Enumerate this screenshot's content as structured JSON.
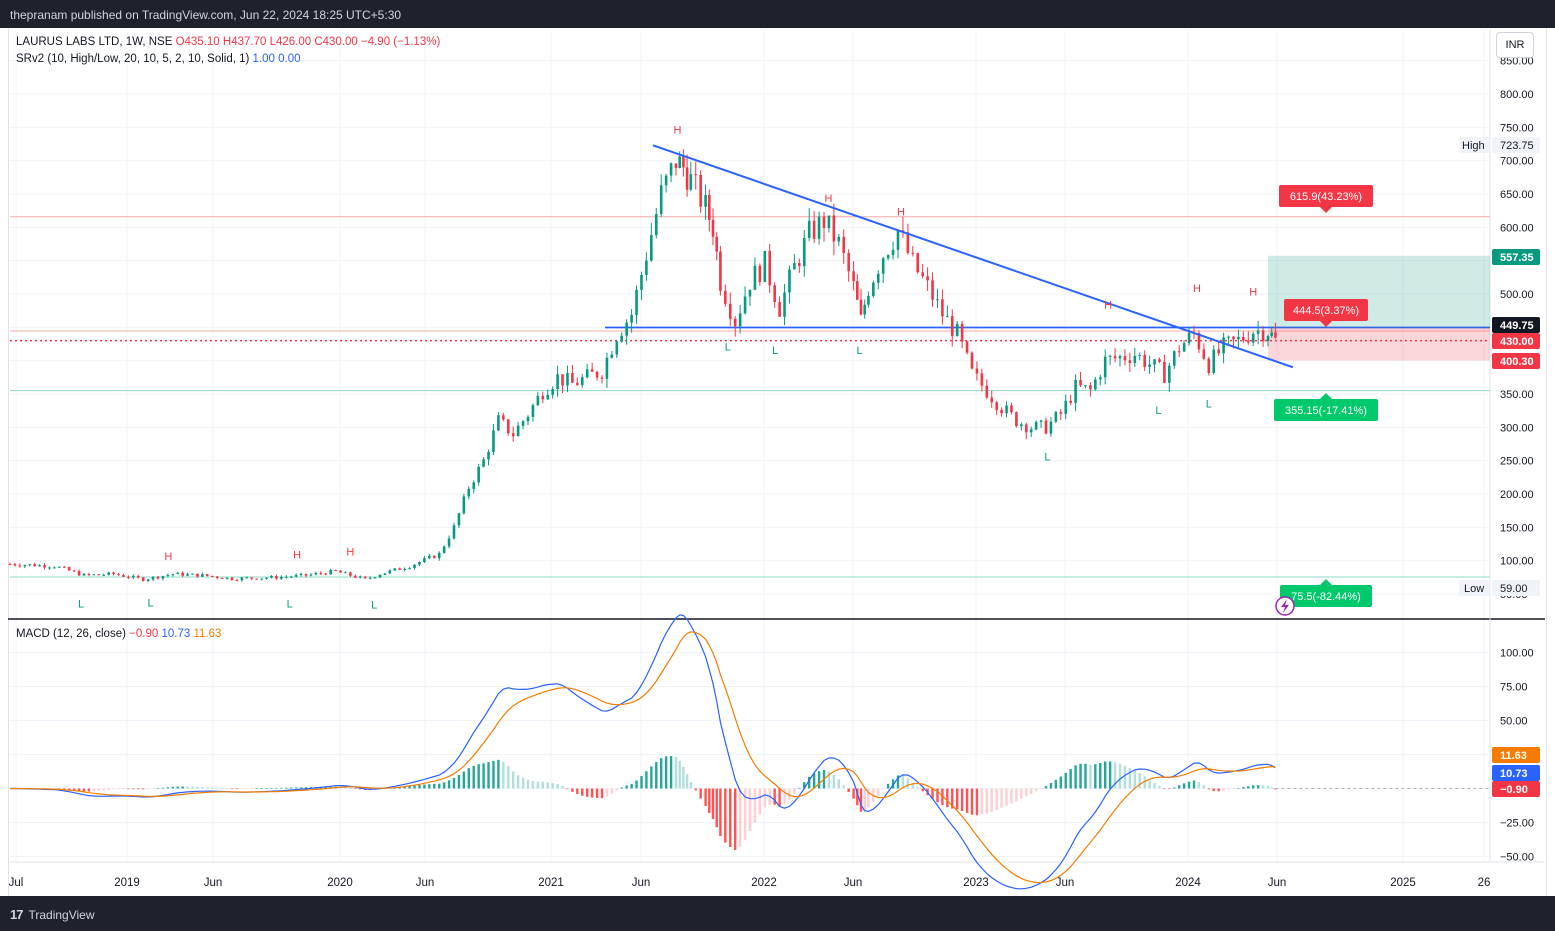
{
  "header": {
    "published": "thepranam published on TradingView.com, Jun 22, 2024 18:25 UTC+5:30"
  },
  "footer": {
    "brand": "TradingView",
    "logo_icon": "tv-logo-icon"
  },
  "currency_button": "INR",
  "legend": {
    "symbol": "LAURUS LABS LTD, 1W, NSE",
    "ohlc": "O435.10  H437.70  L426.00  C430.00  −4.90 (−1.13%)",
    "srv2": "SRv2 (10, High/Low, 20, 10, 5, 2, 10, Solid, 1)",
    "srv2_values": "1.00  0.00",
    "macd": "MACD (12, 26, close)",
    "macd_hist": "−0.90",
    "macd_line": "10.73",
    "macd_signal": "11.63"
  },
  "colors": {
    "up": "#089981",
    "down": "#f23645",
    "trend": "#2962ff",
    "signal": "#f57c00",
    "macd": "#2962ff"
  },
  "chart_data": [
    {
      "type": "candlestick",
      "x_ticks": [
        "Jul",
        "2019",
        "Jun",
        "2020",
        "Jun",
        "2021",
        "Jun",
        "2022",
        "Jun",
        "2023",
        "Jun",
        "2024",
        "Jun",
        "2025",
        "26"
      ],
      "y_ticks": [
        50,
        100,
        150,
        200,
        250,
        300,
        350,
        400,
        450,
        500,
        550,
        600,
        650,
        700,
        750,
        800,
        850
      ],
      "ylim": [
        45,
        860
      ],
      "price_labels": {
        "high": {
          "label": "High",
          "value": "723.75"
        },
        "low": {
          "label": "Low",
          "value": "59.00"
        },
        "current": "430.00",
        "level_1": "449.75",
        "level_2": "400.30",
        "target": "557.35"
      },
      "annotations": {
        "up_target": "615.9(43.23%)",
        "near_target": "444.5(3.37%)",
        "down_target": "355.15(-17.41%)",
        "deep_target": "75.5(-82.44%)"
      },
      "pivot_high_label": "H",
      "pivot_low_label": "L",
      "pivots": [
        {
          "t": "H",
          "x": 0.107,
          "v": 83
        },
        {
          "t": "L",
          "x": 0.048,
          "v": 60
        },
        {
          "t": "L",
          "x": 0.095,
          "v": 61
        },
        {
          "t": "H",
          "x": 0.194,
          "v": 85
        },
        {
          "t": "L",
          "x": 0.189,
          "v": 60
        },
        {
          "t": "H",
          "x": 0.23,
          "v": 90
        },
        {
          "t": "L",
          "x": 0.246,
          "v": 58
        },
        {
          "t": "H",
          "x": 0.451,
          "v": 723
        },
        {
          "t": "L",
          "x": 0.485,
          "v": 445
        },
        {
          "t": "L",
          "x": 0.517,
          "v": 440
        },
        {
          "t": "H",
          "x": 0.553,
          "v": 620
        },
        {
          "t": "L",
          "x": 0.574,
          "v": 440
        },
        {
          "t": "H",
          "x": 0.602,
          "v": 600
        },
        {
          "t": "L",
          "x": 0.701,
          "v": 280
        },
        {
          "t": "H",
          "x": 0.742,
          "v": 460
        },
        {
          "t": "L",
          "x": 0.776,
          "v": 350
        },
        {
          "t": "H",
          "x": 0.802,
          "v": 485
        },
        {
          "t": "L",
          "x": 0.81,
          "v": 360
        },
        {
          "t": "H",
          "x": 0.84,
          "v": 480
        }
      ],
      "path": [
        [
          0.0,
          95
        ],
        [
          0.03,
          92
        ],
        [
          0.05,
          78
        ],
        [
          0.07,
          80
        ],
        [
          0.09,
          72
        ],
        [
          0.11,
          80
        ],
        [
          0.13,
          78
        ],
        [
          0.15,
          73
        ],
        [
          0.18,
          75
        ],
        [
          0.2,
          78
        ],
        [
          0.22,
          84
        ],
        [
          0.24,
          72
        ],
        [
          0.25,
          80
        ],
        [
          0.27,
          92
        ],
        [
          0.29,
          110
        ],
        [
          0.3,
          150
        ],
        [
          0.31,
          210
        ],
        [
          0.32,
          250
        ],
        [
          0.33,
          310
        ],
        [
          0.34,
          290
        ],
        [
          0.35,
          320
        ],
        [
          0.36,
          355
        ],
        [
          0.37,
          375
        ],
        [
          0.38,
          365
        ],
        [
          0.39,
          375
        ],
        [
          0.4,
          385
        ],
        [
          0.41,
          440
        ],
        [
          0.42,
          470
        ],
        [
          0.43,
          560
        ],
        [
          0.44,
          650
        ],
        [
          0.45,
          700
        ],
        [
          0.455,
          690
        ],
        [
          0.46,
          670
        ],
        [
          0.47,
          630
        ],
        [
          0.475,
          600
        ],
        [
          0.48,
          520
        ],
        [
          0.49,
          460
        ],
        [
          0.5,
          520
        ],
        [
          0.51,
          545
        ],
        [
          0.52,
          480
        ],
        [
          0.53,
          540
        ],
        [
          0.54,
          590
        ],
        [
          0.55,
          610
        ],
        [
          0.56,
          575
        ],
        [
          0.57,
          510
        ],
        [
          0.575,
          460
        ],
        [
          0.58,
          510
        ],
        [
          0.59,
          560
        ],
        [
          0.6,
          595
        ],
        [
          0.61,
          545
        ],
        [
          0.62,
          510
        ],
        [
          0.63,
          470
        ],
        [
          0.64,
          440
        ],
        [
          0.65,
          380
        ],
        [
          0.66,
          355
        ],
        [
          0.67,
          330
        ],
        [
          0.68,
          310
        ],
        [
          0.69,
          300
        ],
        [
          0.7,
          300
        ],
        [
          0.71,
          320
        ],
        [
          0.72,
          360
        ],
        [
          0.73,
          355
        ],
        [
          0.74,
          400
        ],
        [
          0.75,
          405
        ],
        [
          0.76,
          410
        ],
        [
          0.77,
          395
        ],
        [
          0.78,
          380
        ],
        [
          0.79,
          420
        ],
        [
          0.8,
          440
        ],
        [
          0.81,
          395
        ],
        [
          0.82,
          420
        ],
        [
          0.83,
          430
        ],
        [
          0.84,
          445
        ],
        [
          0.85,
          445
        ],
        [
          0.855,
          430
        ]
      ]
    },
    {
      "type": "macd",
      "y_ticks": [
        -50,
        -25,
        0,
        25,
        50,
        75,
        100
      ],
      "ylim": [
        -55,
        105
      ],
      "badges": {
        "signal": "11.63",
        "macd": "10.73",
        "hist": "-0.90"
      }
    }
  ]
}
